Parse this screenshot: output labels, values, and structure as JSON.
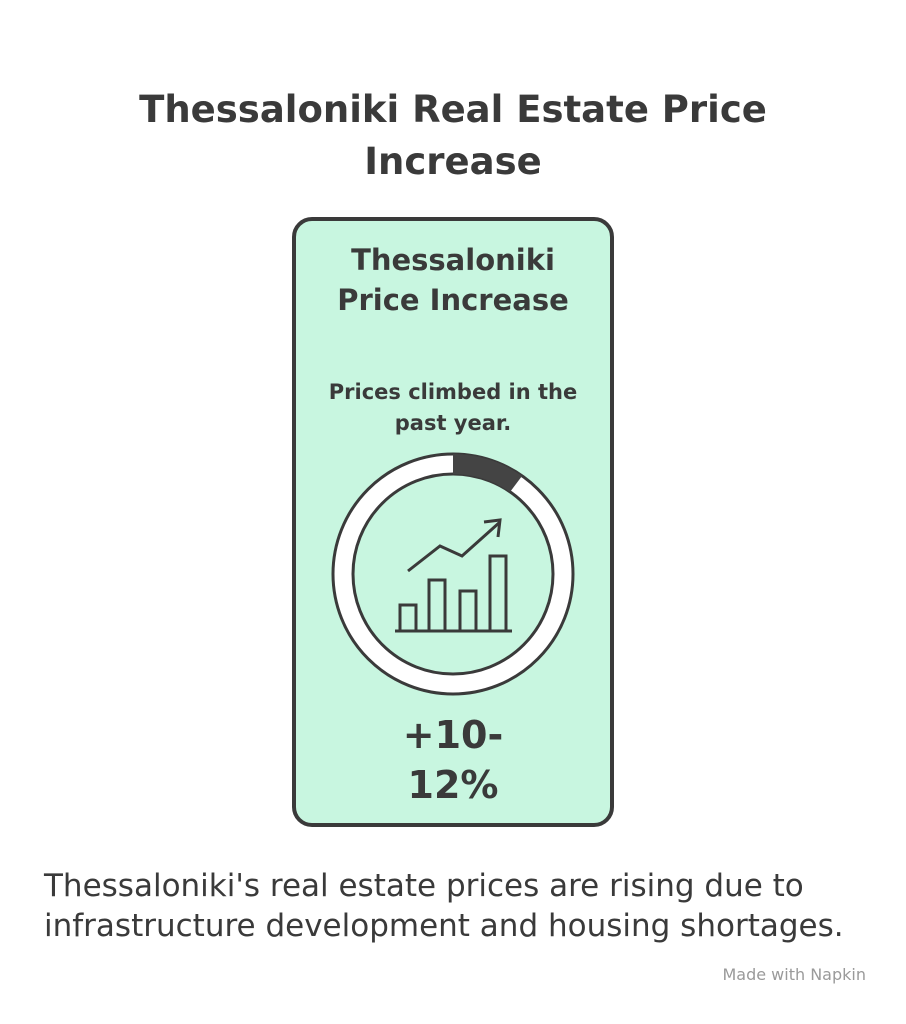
{
  "header": {
    "title": "Thessaloniki Real Estate Price Increase"
  },
  "card": {
    "title": "Thessaloniki Price Increase",
    "subtitle": "Prices climbed in the past year.",
    "value": "+10-12%"
  },
  "caption": "Thessaloniki's real estate prices are rising due to infrastructure development and housing shortages.",
  "footer": "Made with Napkin"
}
